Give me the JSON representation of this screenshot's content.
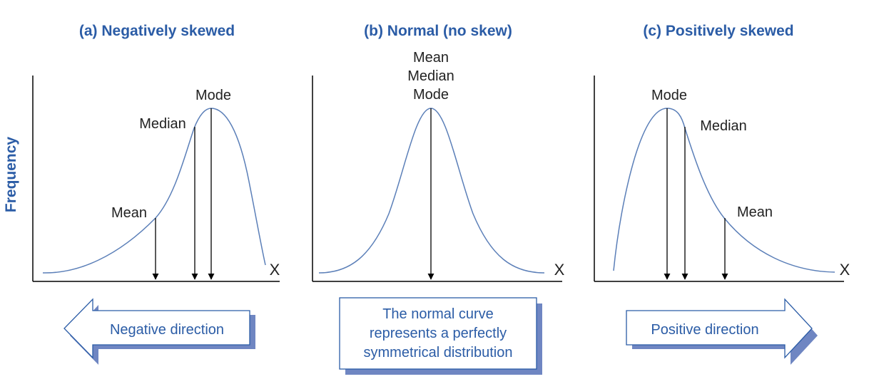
{
  "colors": {
    "accent": "#2B5CA6",
    "curve": "#5B7FB8",
    "axis": "#000000",
    "shadow": "#6F86C2",
    "box_border": "#2B5CA6"
  },
  "y_axis_label": "Frequency",
  "panels": [
    {
      "title": "(a) Negatively skewed",
      "x_label": "X",
      "labels": {
        "mode": "Mode",
        "median": "Median",
        "mean": "Mean"
      },
      "direction_label": "Negative direction"
    },
    {
      "title": "(b) Normal (no skew)",
      "x_label": "X",
      "labels": {
        "mean": "Mean",
        "median": "Median",
        "mode": "Mode"
      },
      "description": [
        "The normal curve",
        "represents a perfectly",
        "symmetrical distribution"
      ]
    },
    {
      "title": "(c) Positively skewed",
      "x_label": "X",
      "labels": {
        "mode": "Mode",
        "median": "Median",
        "mean": "Mean"
      },
      "direction_label": "Positive direction"
    }
  ]
}
